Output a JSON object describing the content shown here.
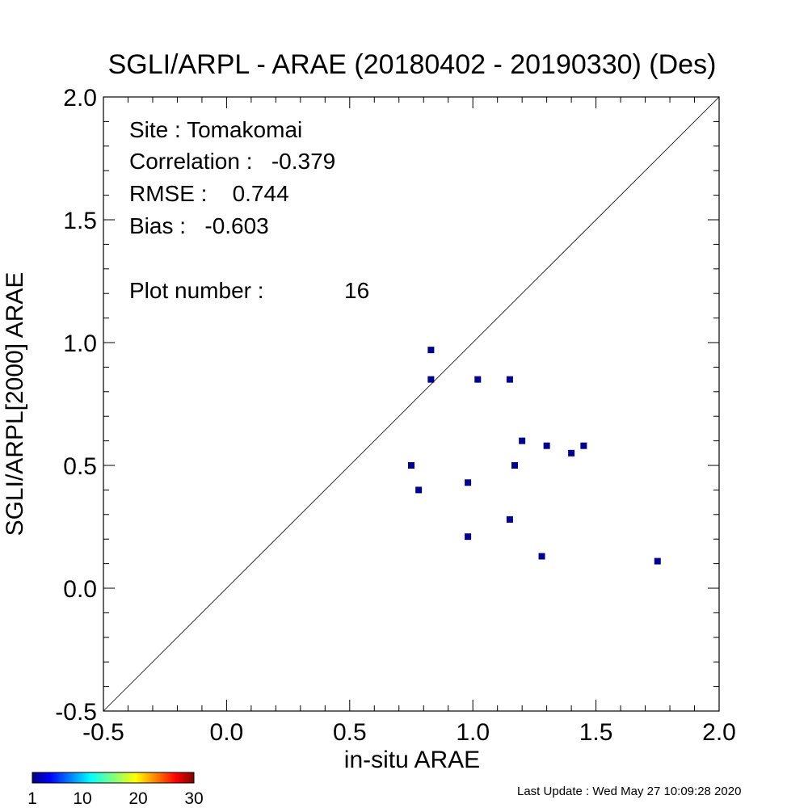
{
  "chart_data": {
    "type": "scatter",
    "title": "SGLI/ARPL - ARAE (20180402 - 20190330) (Des)",
    "xlabel": "in-situ ARAE",
    "ylabel": "SGLI/ARPL[2000]    ARAE",
    "xlim": [
      -0.5,
      2.0
    ],
    "ylim": [
      -0.5,
      2.0
    ],
    "x_ticks": [
      "-0.5",
      "0.0",
      "0.5",
      "1.0",
      "1.5",
      "2.0"
    ],
    "y_ticks": [
      "-0.5",
      "0.0",
      "0.5",
      "1.0",
      "1.5",
      "2.0"
    ],
    "reference_line": "1:1",
    "marker_color": "#00008b",
    "points": [
      {
        "x": 0.83,
        "y": 0.97
      },
      {
        "x": 0.83,
        "y": 0.85
      },
      {
        "x": 1.02,
        "y": 0.85
      },
      {
        "x": 1.15,
        "y": 0.85
      },
      {
        "x": 1.2,
        "y": 0.6
      },
      {
        "x": 1.3,
        "y": 0.58
      },
      {
        "x": 1.45,
        "y": 0.58
      },
      {
        "x": 1.4,
        "y": 0.55
      },
      {
        "x": 0.75,
        "y": 0.5
      },
      {
        "x": 1.17,
        "y": 0.5
      },
      {
        "x": 0.78,
        "y": 0.4
      },
      {
        "x": 0.98,
        "y": 0.43
      },
      {
        "x": 1.15,
        "y": 0.28
      },
      {
        "x": 0.98,
        "y": 0.21
      },
      {
        "x": 1.28,
        "y": 0.13
      },
      {
        "x": 1.75,
        "y": 0.11
      }
    ],
    "annotations": {
      "site": "Site : Tomakomai",
      "correlation": "Correlation :   -0.379",
      "rmse": "RMSE :    0.744",
      "bias": "Bias :   -0.603",
      "plot_number_label": "Plot number :",
      "plot_number_value": "16"
    },
    "colorbar": {
      "ticks": [
        "1",
        "10",
        "20",
        "30"
      ],
      "min": 1,
      "max": 30
    }
  },
  "footer": {
    "last_update": "Last Update : Wed May 27 10:09:28 2020"
  }
}
